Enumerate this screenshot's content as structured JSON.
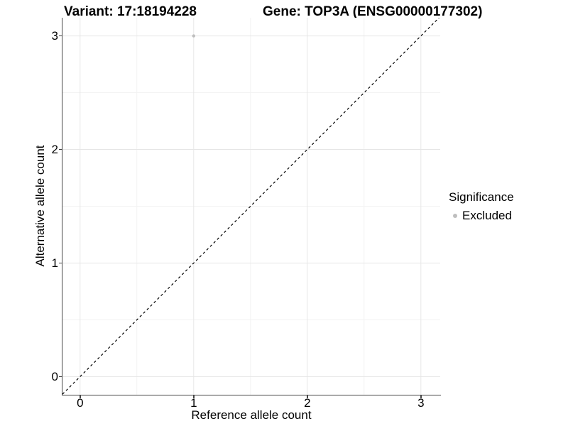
{
  "chart_data": {
    "type": "scatter",
    "title_left": "Variant: 17:18194228",
    "title_right": "Gene: TOP3A (ENSG00000177302)",
    "xlabel": "Reference allele count",
    "ylabel": "Alternative allele count",
    "x_ticks": [
      0,
      1,
      2,
      3
    ],
    "y_ticks": [
      0,
      1,
      2,
      3
    ],
    "x_minor": [
      0.5,
      1.5,
      2.5
    ],
    "y_minor": [
      0.5,
      1.5,
      2.5
    ],
    "x_range": [
      -0.155,
      3.17
    ],
    "y_range": [
      -0.16,
      3.16
    ],
    "grid": true,
    "points": [
      {
        "x": 1,
        "y": 3,
        "significance": "Excluded",
        "color": "#bebebe",
        "radius": 2.2
      }
    ],
    "identity_line": {
      "style": "dashed",
      "slope": 1,
      "intercept": 0,
      "color": "#000000",
      "dash": "3.5 3.5",
      "width": 1.2
    },
    "legend": {
      "position": "right",
      "title": "Significance",
      "items": [
        {
          "label": "Excluded",
          "color": "#bebebe"
        }
      ]
    },
    "colors": {
      "background": "#ffffff",
      "grid_major": "#e6e6e6",
      "grid_minor": "#f3f3f3",
      "axis_line": "#444444",
      "tick": "#444444",
      "text": "#000000"
    }
  }
}
